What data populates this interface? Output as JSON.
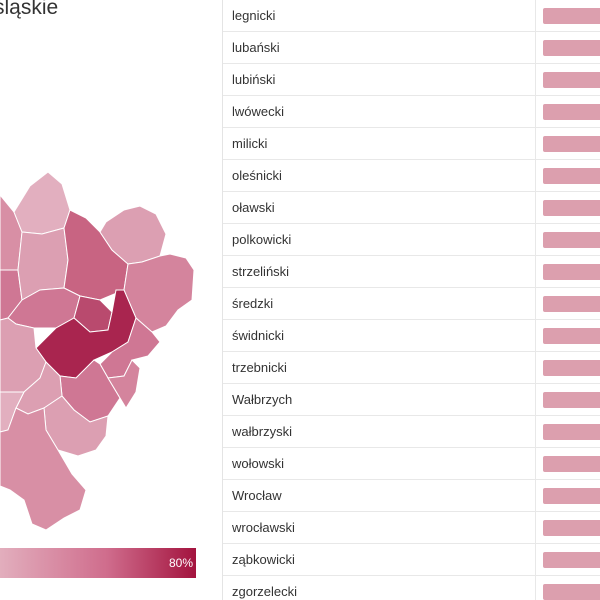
{
  "map_panel": {
    "title": "śląskie",
    "legend_max": "80%",
    "colors": {
      "light": "#e2aebd",
      "mid": "#cf6c8c",
      "dark": "#a3133e"
    }
  },
  "table": {
    "rows": [
      {
        "name": "legnicki"
      },
      {
        "name": "lubański"
      },
      {
        "name": "lubiński"
      },
      {
        "name": "lwówecki"
      },
      {
        "name": "milicki"
      },
      {
        "name": "oleśnicki"
      },
      {
        "name": "oławski"
      },
      {
        "name": "polkowicki"
      },
      {
        "name": "strzeliński"
      },
      {
        "name": "średzki"
      },
      {
        "name": "świdnicki"
      },
      {
        "name": "trzebnicki"
      },
      {
        "name": "Wałbrzych"
      },
      {
        "name": "wałbrzyski"
      },
      {
        "name": "wołowski"
      },
      {
        "name": "Wrocław"
      },
      {
        "name": "wrocławski"
      },
      {
        "name": "ząbkowicki"
      },
      {
        "name": "zgorzelecki"
      }
    ],
    "bar_color": "#dc9fae"
  }
}
